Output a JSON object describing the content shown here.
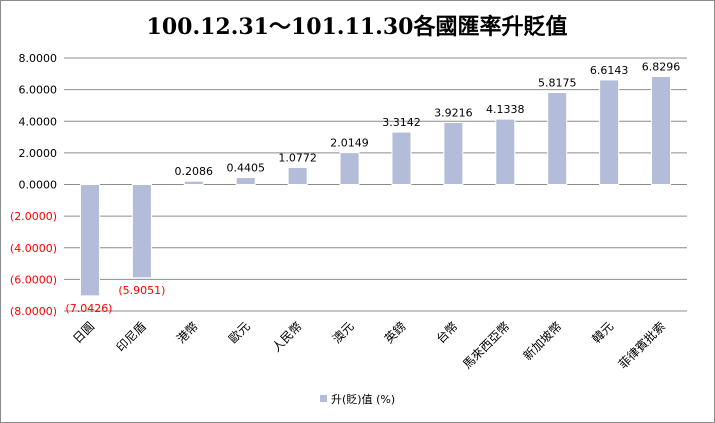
{
  "chart_data": {
    "type": "bar",
    "title": "100.12.31～101.11.30各國匯率升貶值",
    "categories": [
      "日圓",
      "印尼盾",
      "港幣",
      "歐元",
      "人民幣",
      "澳元",
      "英鎊",
      "台幣",
      "馬來西亞幣",
      "新加坡幣",
      "韓元",
      "菲律賓批索"
    ],
    "series": [
      {
        "name": "升(貶)值 (%)",
        "values": [
          -7.0426,
          -5.9051,
          0.2086,
          0.4405,
          1.0772,
          2.0149,
          3.3142,
          3.9216,
          4.1338,
          5.8175,
          6.6143,
          6.8296
        ],
        "value_labels": [
          "(7.0426)",
          "(5.9051)",
          "0.2086",
          "0.4405",
          "1.0772",
          "2.0149",
          "3.3142",
          "3.9216",
          "4.1338",
          "5.8175",
          "6.6143",
          "6.8296"
        ]
      }
    ],
    "ylim": [
      -8,
      8
    ],
    "yticks": [
      8,
      6,
      4,
      2,
      0,
      -2,
      -4,
      -6,
      -8
    ],
    "ytick_labels": [
      "8.0000",
      "6.0000",
      "4.0000",
      "2.0000",
      "0.0000",
      "(2.0000)",
      "(4.0000)",
      "(6.0000)",
      "(8.0000)"
    ],
    "xlabel": "",
    "ylabel": "",
    "grid": true,
    "legend": "bottom",
    "colors": {
      "bar": "#b3bcd8",
      "negative_text": "#ff0000",
      "text": "#000000",
      "grid": "#8c8c8c"
    }
  }
}
